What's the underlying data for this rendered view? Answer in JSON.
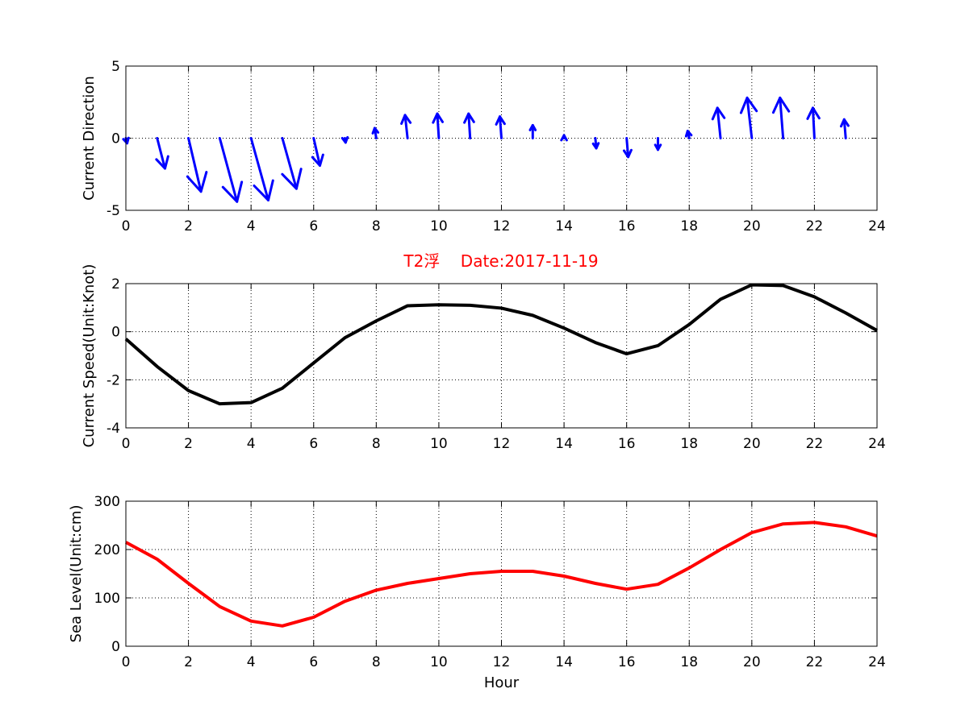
{
  "title": {
    "text": "T2浮    Date:2017-11-19",
    "color": "#ff0000"
  },
  "chart_data": [
    {
      "type": "quiver",
      "ylabel": "Current Direction",
      "xlabel": "",
      "xlim": [
        0,
        24
      ],
      "ylim": [
        -5,
        5
      ],
      "xticks": [
        "0",
        "2",
        "4",
        "6",
        "8",
        "10",
        "12",
        "14",
        "16",
        "18",
        "20",
        "22",
        "24"
      ],
      "yticks": [
        "-5",
        "0",
        "5"
      ],
      "ytick_values": [
        -5,
        0,
        5
      ],
      "grid": true,
      "color": "#0000ff",
      "vectors": [
        {
          "x": 0,
          "u": 0.04,
          "v": -0.35
        },
        {
          "x": 1,
          "u": 0.25,
          "v": -2.1
        },
        {
          "x": 2,
          "u": 0.4,
          "v": -3.7
        },
        {
          "x": 3,
          "u": 0.55,
          "v": -4.4
        },
        {
          "x": 4,
          "u": 0.55,
          "v": -4.3
        },
        {
          "x": 5,
          "u": 0.45,
          "v": -3.5
        },
        {
          "x": 6,
          "u": 0.2,
          "v": -1.9
        },
        {
          "x": 7,
          "u": 0.02,
          "v": -0.3
        },
        {
          "x": 8,
          "u": -0.05,
          "v": 0.7
        },
        {
          "x": 9,
          "u": -0.08,
          "v": 1.6
        },
        {
          "x": 10,
          "u": -0.05,
          "v": 1.7
        },
        {
          "x": 11,
          "u": -0.05,
          "v": 1.7
        },
        {
          "x": 12,
          "u": -0.05,
          "v": 1.5
        },
        {
          "x": 13,
          "u": 0.0,
          "v": 0.9
        },
        {
          "x": 14,
          "u": 0.0,
          "v": 0.2
        },
        {
          "x": 15,
          "u": 0.03,
          "v": -0.7
        },
        {
          "x": 16,
          "u": 0.05,
          "v": -1.3
        },
        {
          "x": 17,
          "u": 0.0,
          "v": -0.8
        },
        {
          "x": 18,
          "u": -0.05,
          "v": 0.5
        },
        {
          "x": 19,
          "u": -0.1,
          "v": 2.1
        },
        {
          "x": 20,
          "u": -0.15,
          "v": 2.8
        },
        {
          "x": 21,
          "u": -0.1,
          "v": 2.8
        },
        {
          "x": 22,
          "u": -0.05,
          "v": 2.1
        },
        {
          "x": 23,
          "u": -0.05,
          "v": 1.3
        }
      ]
    },
    {
      "type": "line",
      "ylabel": "Current Speed(Unit:Knot)",
      "xlabel": "",
      "xlim": [
        0,
        24
      ],
      "ylim": [
        -4,
        2
      ],
      "xticks": [
        "0",
        "2",
        "4",
        "6",
        "8",
        "10",
        "12",
        "14",
        "16",
        "18",
        "20",
        "22",
        "24"
      ],
      "yticks": [
        "-4",
        "-2",
        "0",
        "2"
      ],
      "ytick_values": [
        -4,
        -2,
        0,
        2
      ],
      "grid": true,
      "color": "#000000",
      "x": [
        0,
        1,
        2,
        3,
        4,
        5,
        6,
        7,
        8,
        9,
        10,
        11,
        12,
        13,
        14,
        15,
        16,
        17,
        18,
        19,
        20,
        21,
        22,
        23,
        24
      ],
      "y": [
        -0.3,
        -1.45,
        -2.45,
        -3.0,
        -2.95,
        -2.35,
        -1.3,
        -0.25,
        0.45,
        1.08,
        1.12,
        1.1,
        0.98,
        0.68,
        0.15,
        -0.45,
        -0.92,
        -0.58,
        0.3,
        1.35,
        1.95,
        1.92,
        1.45,
        0.78,
        0.05
      ]
    },
    {
      "type": "line",
      "ylabel": "Sea Level(Unit:cm)",
      "xlabel": "Hour",
      "xlim": [
        0,
        24
      ],
      "ylim": [
        0,
        300
      ],
      "xticks": [
        "0",
        "2",
        "4",
        "6",
        "8",
        "10",
        "12",
        "14",
        "16",
        "18",
        "20",
        "22",
        "24"
      ],
      "yticks": [
        "0",
        "100",
        "200",
        "300"
      ],
      "ytick_values": [
        0,
        100,
        200,
        300
      ],
      "grid": true,
      "color": "#ff0000",
      "x": [
        0,
        1,
        2,
        3,
        4,
        5,
        6,
        7,
        8,
        9,
        10,
        11,
        12,
        13,
        14,
        15,
        16,
        17,
        18,
        19,
        20,
        21,
        22,
        23,
        24
      ],
      "y": [
        215,
        180,
        130,
        82,
        52,
        42,
        60,
        93,
        116,
        130,
        140,
        150,
        155,
        155,
        145,
        130,
        118,
        128,
        162,
        200,
        235,
        253,
        256,
        247,
        228
      ]
    }
  ]
}
